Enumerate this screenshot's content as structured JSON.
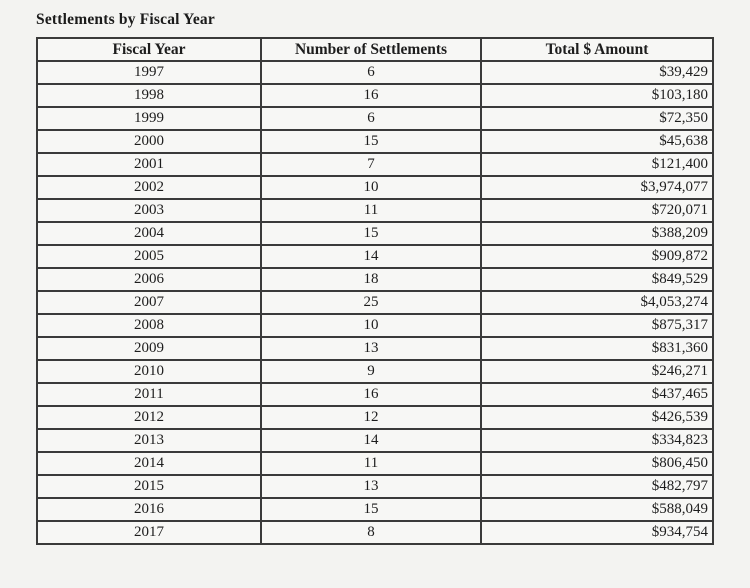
{
  "title": "Settlements by Fiscal Year",
  "table": {
    "columns": [
      "Fiscal Year",
      "Number of Settlements",
      "Total $ Amount"
    ],
    "rows": [
      [
        "1997",
        "6",
        "$39,429"
      ],
      [
        "1998",
        "16",
        "$103,180"
      ],
      [
        "1999",
        "6",
        "$72,350"
      ],
      [
        "2000",
        "15",
        "$45,638"
      ],
      [
        "2001",
        "7",
        "$121,400"
      ],
      [
        "2002",
        "10",
        "$3,974,077"
      ],
      [
        "2003",
        "11",
        "$720,071"
      ],
      [
        "2004",
        "15",
        "$388,209"
      ],
      [
        "2005",
        "14",
        "$909,872"
      ],
      [
        "2006",
        "18",
        "$849,529"
      ],
      [
        "2007",
        "25",
        "$4,053,274"
      ],
      [
        "2008",
        "10",
        "$875,317"
      ],
      [
        "2009",
        "13",
        "$831,360"
      ],
      [
        "2010",
        "9",
        "$246,271"
      ],
      [
        "2011",
        "16",
        "$437,465"
      ],
      [
        "2012",
        "12",
        "$426,539"
      ],
      [
        "2013",
        "14",
        "$334,823"
      ],
      [
        "2014",
        "11",
        "$806,450"
      ],
      [
        "2015",
        "13",
        "$482,797"
      ],
      [
        "2016",
        "15",
        "$588,049"
      ],
      [
        "2017",
        "8",
        "$934,754"
      ]
    ]
  },
  "colors": {
    "page_background": "#f3f3f1",
    "cell_background": "#f7f7f5",
    "border": "#3a3a3a",
    "text": "#1d1d1d"
  }
}
